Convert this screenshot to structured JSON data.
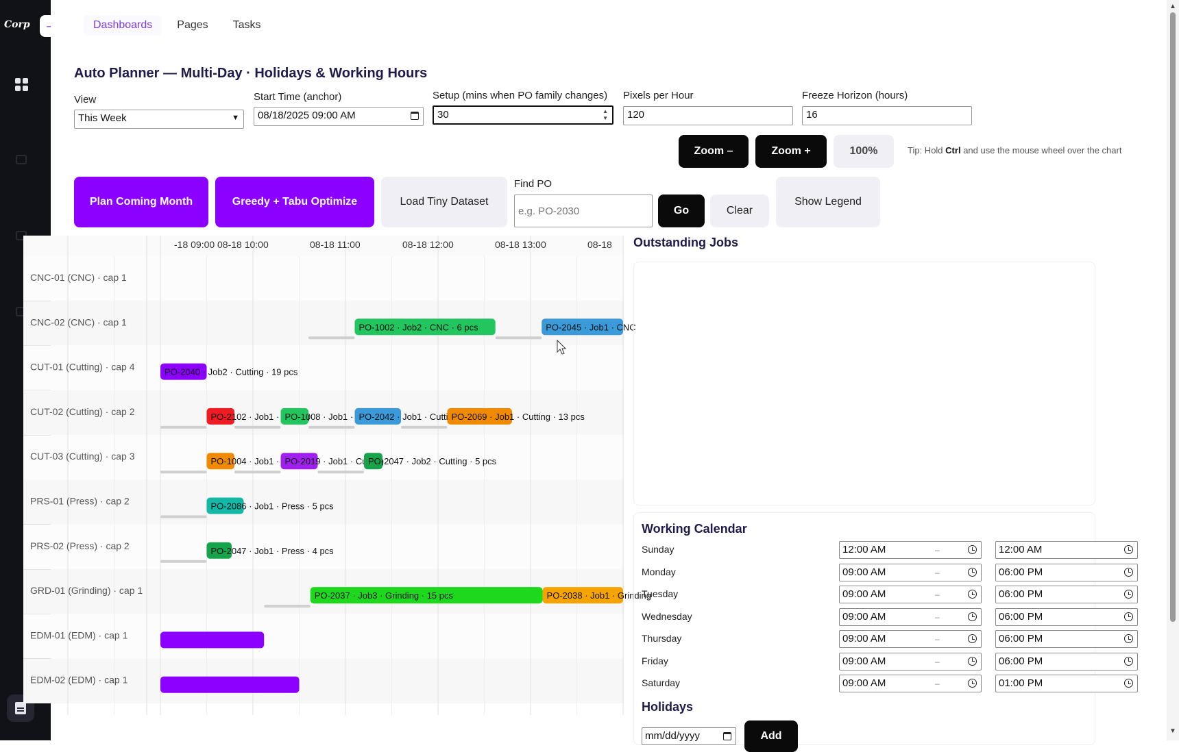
{
  "sidebar": {
    "logo_text": "Corp",
    "collapse_icon": "→"
  },
  "nav": {
    "tabs": [
      "Dashboards",
      "Pages",
      "Tasks"
    ],
    "active": "Dashboards"
  },
  "title": "Auto Planner — Multi-Day · Holidays & Working Hours",
  "controls": {
    "view_label": "View",
    "view_value": "This Week",
    "start_label": "Start Time (anchor)",
    "start_value": "08/18/2025 09:00  AM",
    "setup_label": "Setup (mins when PO family changes)",
    "setup_value": "30",
    "pph_label": "Pixels per Hour",
    "pph_value": "120",
    "freeze_label": "Freeze Horizon (hours)",
    "freeze_value": "16"
  },
  "zoom": {
    "minus": "Zoom –",
    "plus": "Zoom +",
    "level": "100%"
  },
  "tip": {
    "prefix": "Tip: Hold",
    "key": "Ctrl",
    "suffix": "and use the mouse wheel over the chart"
  },
  "actions": {
    "plan": "Plan Coming Month",
    "optimize": "Greedy + Tabu Optimize",
    "load": "Load Tiny Dataset",
    "find_label": "Find PO",
    "find_placeholder": "e.g. PO-2030",
    "go": "Go",
    "clear": "Clear",
    "legend": "Show Legend"
  },
  "gantt": {
    "ticks": [
      "-18 09:00",
      "08-18 10:00",
      "08-18 11:00",
      "08-18 12:00",
      "08-18 13:00",
      "08-18"
    ],
    "resources": [
      "CNC-01 (CNC) · cap 1",
      "CNC-02 (CNC) · cap 1",
      "CUT-01 (Cutting) · cap 4",
      "CUT-02 (Cutting) · cap 2",
      "CUT-03 (Cutting) · cap 3",
      "PRS-01 (Press) · cap 2",
      "PRS-02 (Press) · cap 2",
      "GRD-01 (Grinding) · cap 1",
      "EDM-01 (EDM) · cap 1",
      "EDM-02 (EDM) · cap 1"
    ],
    "bars": [
      {
        "row": 1,
        "start": 2.1,
        "end": 3.62,
        "color": "#22c55e",
        "label": "PO-1002 · Job2 · CNC · 6 pcs"
      },
      {
        "row": 1,
        "start": 4.12,
        "end": 5.0,
        "color": "#3b9ad9",
        "label": "PO-2045 · Job1 · CNC"
      },
      {
        "row": 2,
        "start": 0.0,
        "end": 0.5,
        "color": "#8b00ff",
        "label": "PO-2040 · Job2 · Cutting · 19 pcs"
      },
      {
        "row": 3,
        "start": 0.5,
        "end": 0.8,
        "color": "#ef1c24",
        "label": "PO-2102 · Job1 · Cutting"
      },
      {
        "row": 3,
        "start": 1.3,
        "end": 1.6,
        "color": "#22c55e",
        "label": "PO-1008 · Job1 · Cutting"
      },
      {
        "row": 3,
        "start": 2.1,
        "end": 2.6,
        "color": "#3b9ad9",
        "label": "PO-2042 · Job1 · Cutting"
      },
      {
        "row": 3,
        "start": 3.1,
        "end": 3.8,
        "color": "#f08a00",
        "label": "PO-2069 · Job1 · Cutting · 13 pcs"
      },
      {
        "row": 4,
        "start": 0.5,
        "end": 0.8,
        "color": "#f08a00",
        "label": "PO-1004 · Job1 · Cutting"
      },
      {
        "row": 4,
        "start": 1.3,
        "end": 1.7,
        "color": "#a020f0",
        "label": "PO-2019 · Job1 · Cutting"
      },
      {
        "row": 4,
        "start": 2.2,
        "end": 2.4,
        "color": "#16a34a",
        "label": "PO-2047 · Job2 · Cutting · 5 pcs"
      },
      {
        "row": 5,
        "start": 0.5,
        "end": 0.9,
        "color": "#14b8a6",
        "label": "PO-2086 · Job1 · Press · 5 pcs"
      },
      {
        "row": 6,
        "start": 0.5,
        "end": 0.77,
        "color": "#16a34a",
        "label": "PO-2047 · Job1 · Press · 4 pcs"
      },
      {
        "row": 7,
        "start": 1.62,
        "end": 4.13,
        "color": "#1ed81e",
        "label": "PO-2037 · Job3 · Grinding · 15 pcs"
      },
      {
        "row": 7,
        "start": 4.13,
        "end": 5.0,
        "color": "#f5a300",
        "label": "PO-2038 · Job1 · Grinding"
      },
      {
        "row": 8,
        "start": 0.0,
        "end": 1.12,
        "color": "#8b00ff",
        "label": ""
      },
      {
        "row": 9,
        "start": 0.0,
        "end": 1.5,
        "color": "#8b00ff",
        "label": ""
      }
    ],
    "setups": [
      {
        "row": 1,
        "start": 1.6,
        "end": 2.1
      },
      {
        "row": 1,
        "start": 3.62,
        "end": 4.12
      },
      {
        "row": 3,
        "start": 0.0,
        "end": 0.5
      },
      {
        "row": 3,
        "start": 0.8,
        "end": 1.3
      },
      {
        "row": 3,
        "start": 1.6,
        "end": 2.1
      },
      {
        "row": 3,
        "start": 2.6,
        "end": 3.1
      },
      {
        "row": 4,
        "start": 0.0,
        "end": 0.5
      },
      {
        "row": 4,
        "start": 0.8,
        "end": 1.3
      },
      {
        "row": 4,
        "start": 1.7,
        "end": 2.2
      },
      {
        "row": 5,
        "start": 0.0,
        "end": 0.5
      },
      {
        "row": 6,
        "start": 0.0,
        "end": 0.5
      },
      {
        "row": 7,
        "start": 1.12,
        "end": 1.62
      }
    ]
  },
  "outstanding": {
    "title": "Outstanding Jobs"
  },
  "calendar": {
    "title": "Working Calendar",
    "days": [
      {
        "day": "Sunday",
        "start": "12:00 AM",
        "end": "12:00 AM"
      },
      {
        "day": "Monday",
        "start": "09:00 AM",
        "end": "06:00 PM"
      },
      {
        "day": "Tuesday",
        "start": "09:00 AM",
        "end": "06:00 PM"
      },
      {
        "day": "Wednesday",
        "start": "09:00 AM",
        "end": "06:00 PM"
      },
      {
        "day": "Thursday",
        "start": "09:00 AM",
        "end": "06:00 PM"
      },
      {
        "day": "Friday",
        "start": "09:00 AM",
        "end": "06:00 PM"
      },
      {
        "day": "Saturday",
        "start": "09:00 AM",
        "end": "01:00 PM"
      }
    ],
    "separator": "–"
  },
  "holidays": {
    "title": "Holidays",
    "date_placeholder": "mm/dd/yyyy",
    "add": "Add"
  }
}
